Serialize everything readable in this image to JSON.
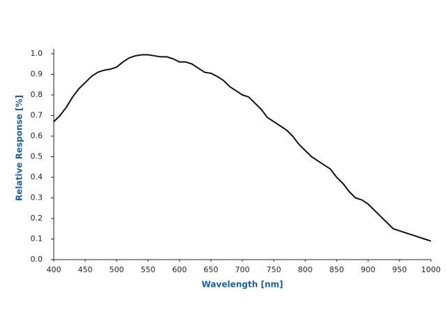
{
  "chart_data": {
    "type": "line",
    "xlabel": "Wavelength [nm]",
    "ylabel": "Relative Response [%]",
    "x": [
      400,
      410,
      420,
      430,
      440,
      450,
      460,
      470,
      480,
      490,
      500,
      510,
      520,
      530,
      540,
      550,
      560,
      570,
      580,
      590,
      600,
      610,
      620,
      630,
      640,
      650,
      660,
      670,
      680,
      690,
      700,
      710,
      720,
      730,
      740,
      750,
      760,
      770,
      780,
      790,
      800,
      810,
      820,
      830,
      840,
      850,
      860,
      870,
      880,
      890,
      900,
      910,
      920,
      930,
      940,
      950,
      960,
      970,
      980,
      990,
      1000
    ],
    "series": [
      {
        "name": "Relative Response",
        "color": "#111111",
        "values": [
          0.67,
          0.7,
          0.74,
          0.79,
          0.83,
          0.86,
          0.89,
          0.91,
          0.92,
          0.925,
          0.935,
          0.96,
          0.98,
          0.99,
          0.995,
          0.995,
          0.99,
          0.985,
          0.985,
          0.975,
          0.96,
          0.96,
          0.95,
          0.93,
          0.91,
          0.905,
          0.89,
          0.87,
          0.84,
          0.82,
          0.8,
          0.79,
          0.76,
          0.73,
          0.69,
          0.67,
          0.65,
          0.63,
          0.6,
          0.56,
          0.53,
          0.5,
          0.48,
          0.46,
          0.44,
          0.4,
          0.37,
          0.33,
          0.3,
          0.29,
          0.27,
          0.24,
          0.21,
          0.18,
          0.15,
          0.14,
          0.13,
          0.12,
          0.11,
          0.1,
          0.09
        ]
      }
    ],
    "xlim": [
      400,
      1000
    ],
    "xticks": [
      400,
      450,
      500,
      550,
      600,
      650,
      700,
      750,
      800,
      850,
      900,
      950,
      1000
    ],
    "ylim": [
      0,
      1
    ],
    "yticks": [
      {
        "value": 0,
        "label": "0.0"
      },
      0.1,
      0.2,
      0.3,
      0.4,
      0.5,
      0.6,
      0.7,
      0.8,
      0.9,
      {
        "value": 1,
        "label": "1.0"
      }
    ],
    "grid": false
  }
}
